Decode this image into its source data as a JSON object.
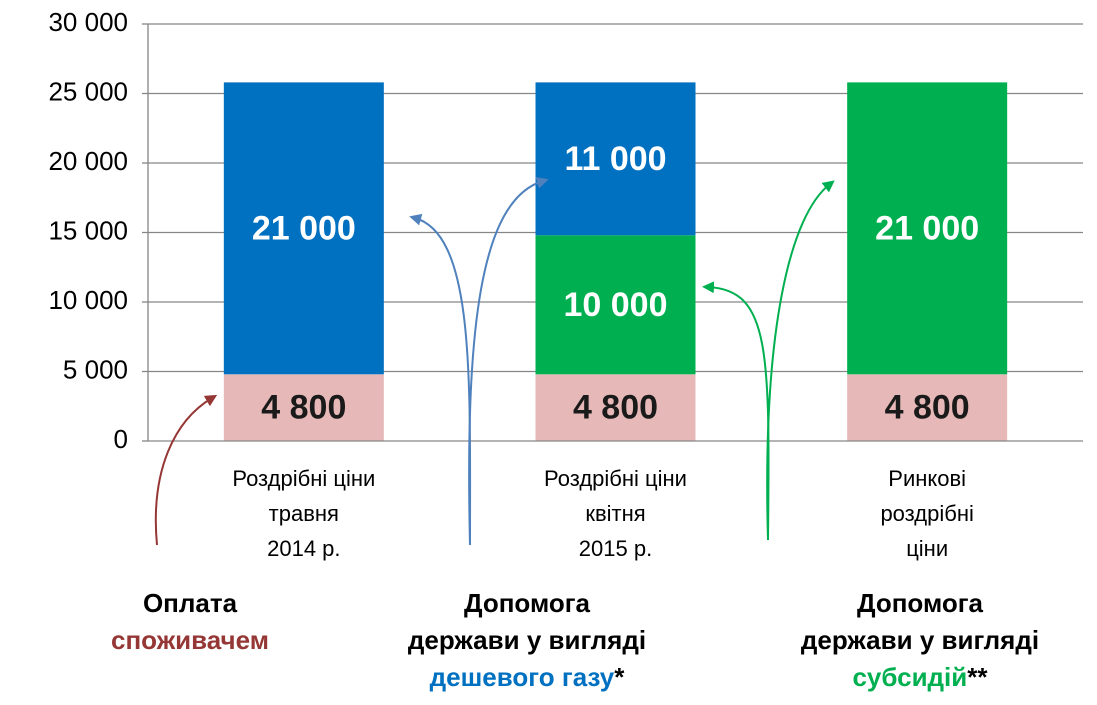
{
  "chart_data": {
    "type": "stacked_bar",
    "categories": [
      [
        "Роздрібні ціни",
        "травня",
        "2014 р."
      ],
      [
        "Роздрібні ціни",
        "квітня",
        "2015 р."
      ],
      [
        "Ринкові",
        "роздрібні",
        "ціни"
      ]
    ],
    "series": [
      {
        "color": "#e6b9b8",
        "label_color": "#1a1a1a",
        "values": [
          4800,
          4800,
          4800
        ],
        "value_labels": [
          "4 800",
          "4 800",
          "4 800"
        ]
      },
      {
        "color": "#00b050",
        "label_color": "#ffffff",
        "values": [
          null,
          10000,
          21000
        ],
        "value_labels": [
          null,
          "10 000",
          "21 000"
        ]
      },
      {
        "color": "#0070c0",
        "label_color": "#ffffff",
        "values": [
          21000,
          11000,
          null
        ],
        "value_labels": [
          "21 000",
          "11 000",
          null
        ]
      }
    ],
    "ylim": [
      0,
      30000
    ],
    "yticks": [
      0,
      {
        "value": 5000,
        "label": "5 000"
      },
      {
        "value": 10000,
        "label": "10 000"
      },
      {
        "value": 15000,
        "label": "15 000"
      },
      {
        "value": 20000,
        "label": "20 000"
      },
      {
        "value": 25000,
        "label": "25 000"
      },
      {
        "value": 30000,
        "label": "30 000"
      }
    ],
    "grid": true,
    "annotations": [
      {
        "lines": [
          [
            {
              "text": "Оплата",
              "color": "#000000"
            }
          ],
          [
            {
              "text": "споживачем",
              "color": "#953735"
            }
          ]
        ]
      },
      {
        "lines": [
          [
            {
              "text": "Допомога",
              "color": "#000000"
            }
          ],
          [
            {
              "text": "держави у вигляді",
              "color": "#000000"
            }
          ],
          [
            {
              "text": "дешевого газу",
              "color": "#0070c0"
            },
            {
              "text": "*",
              "color": "#000000"
            }
          ]
        ]
      },
      {
        "lines": [
          [
            {
              "text": "Допомога",
              "color": "#000000"
            }
          ],
          [
            {
              "text": "держави у вигляді",
              "color": "#000000"
            }
          ],
          [
            {
              "text": "субсидій",
              "color": "#00b050"
            },
            {
              "text": "**",
              "color": "#000000"
            }
          ]
        ]
      }
    ]
  }
}
